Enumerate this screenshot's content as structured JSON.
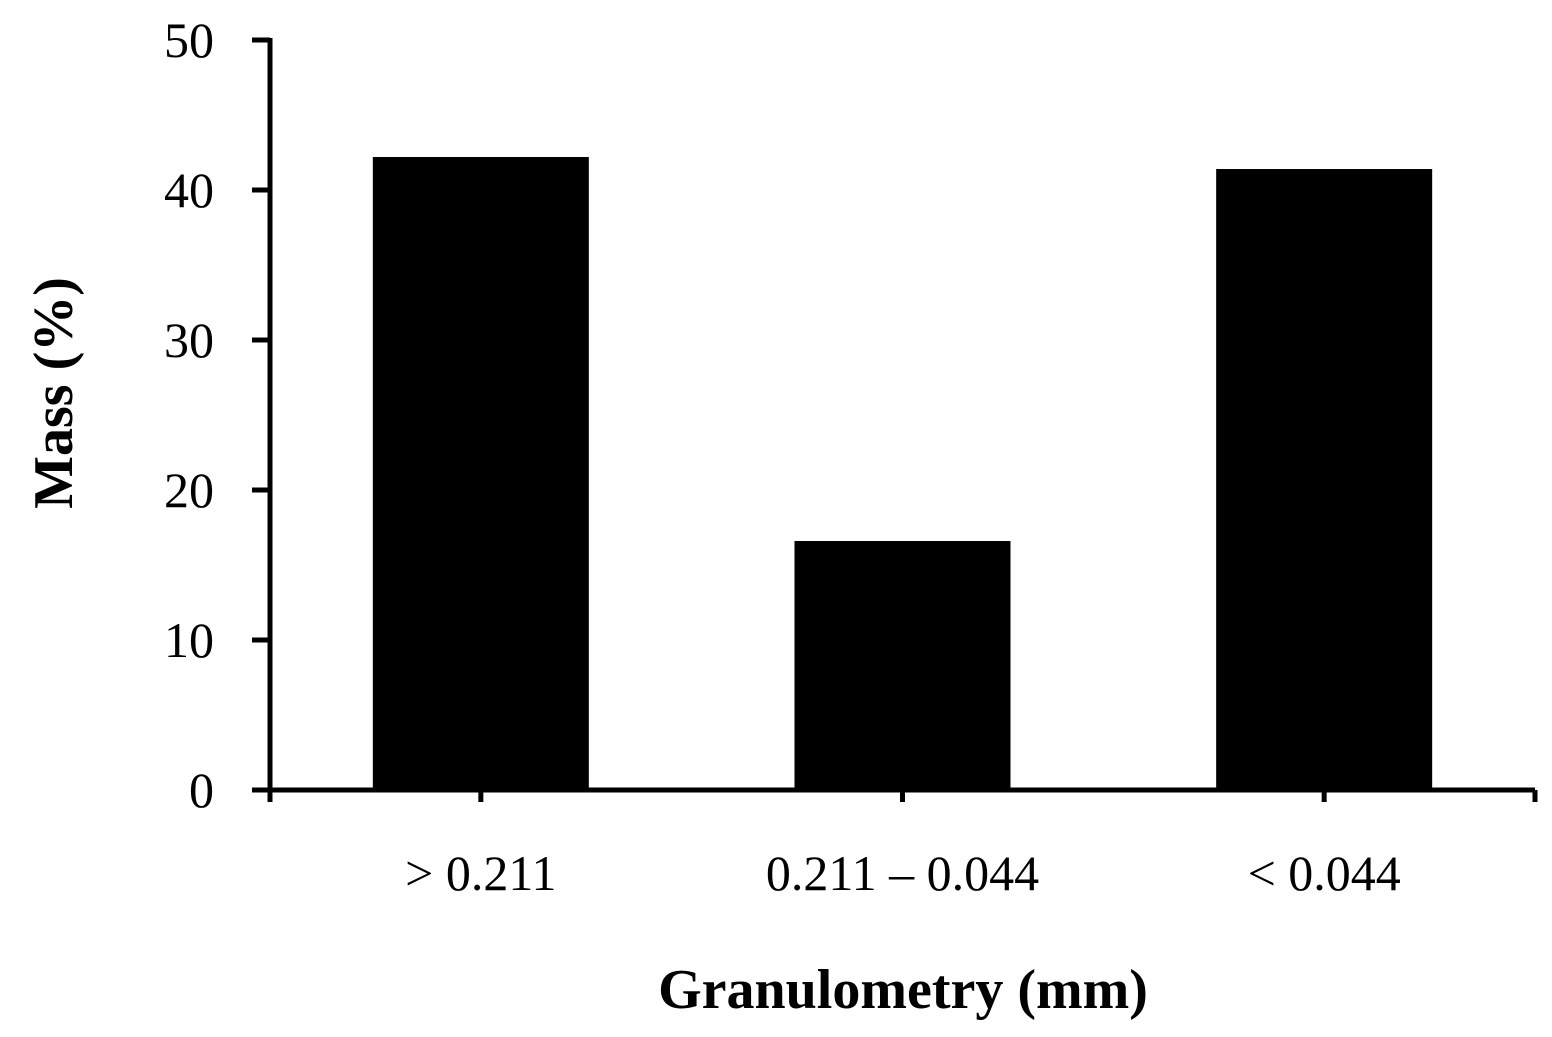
{
  "chart_data": {
    "type": "bar",
    "categories": [
      "> 0.211",
      "0.211 – 0.044",
      "< 0.044"
    ],
    "values": [
      42.2,
      16.6,
      41.4
    ],
    "title": "",
    "xlabel": "Granulometry (mm)",
    "ylabel": "Mass (%)",
    "ylim": [
      0,
      50
    ],
    "yticks": [
      "0",
      "10",
      "20",
      "30",
      "40",
      "50"
    ],
    "grid": false,
    "legend": "none",
    "bar_color": "#000000"
  }
}
